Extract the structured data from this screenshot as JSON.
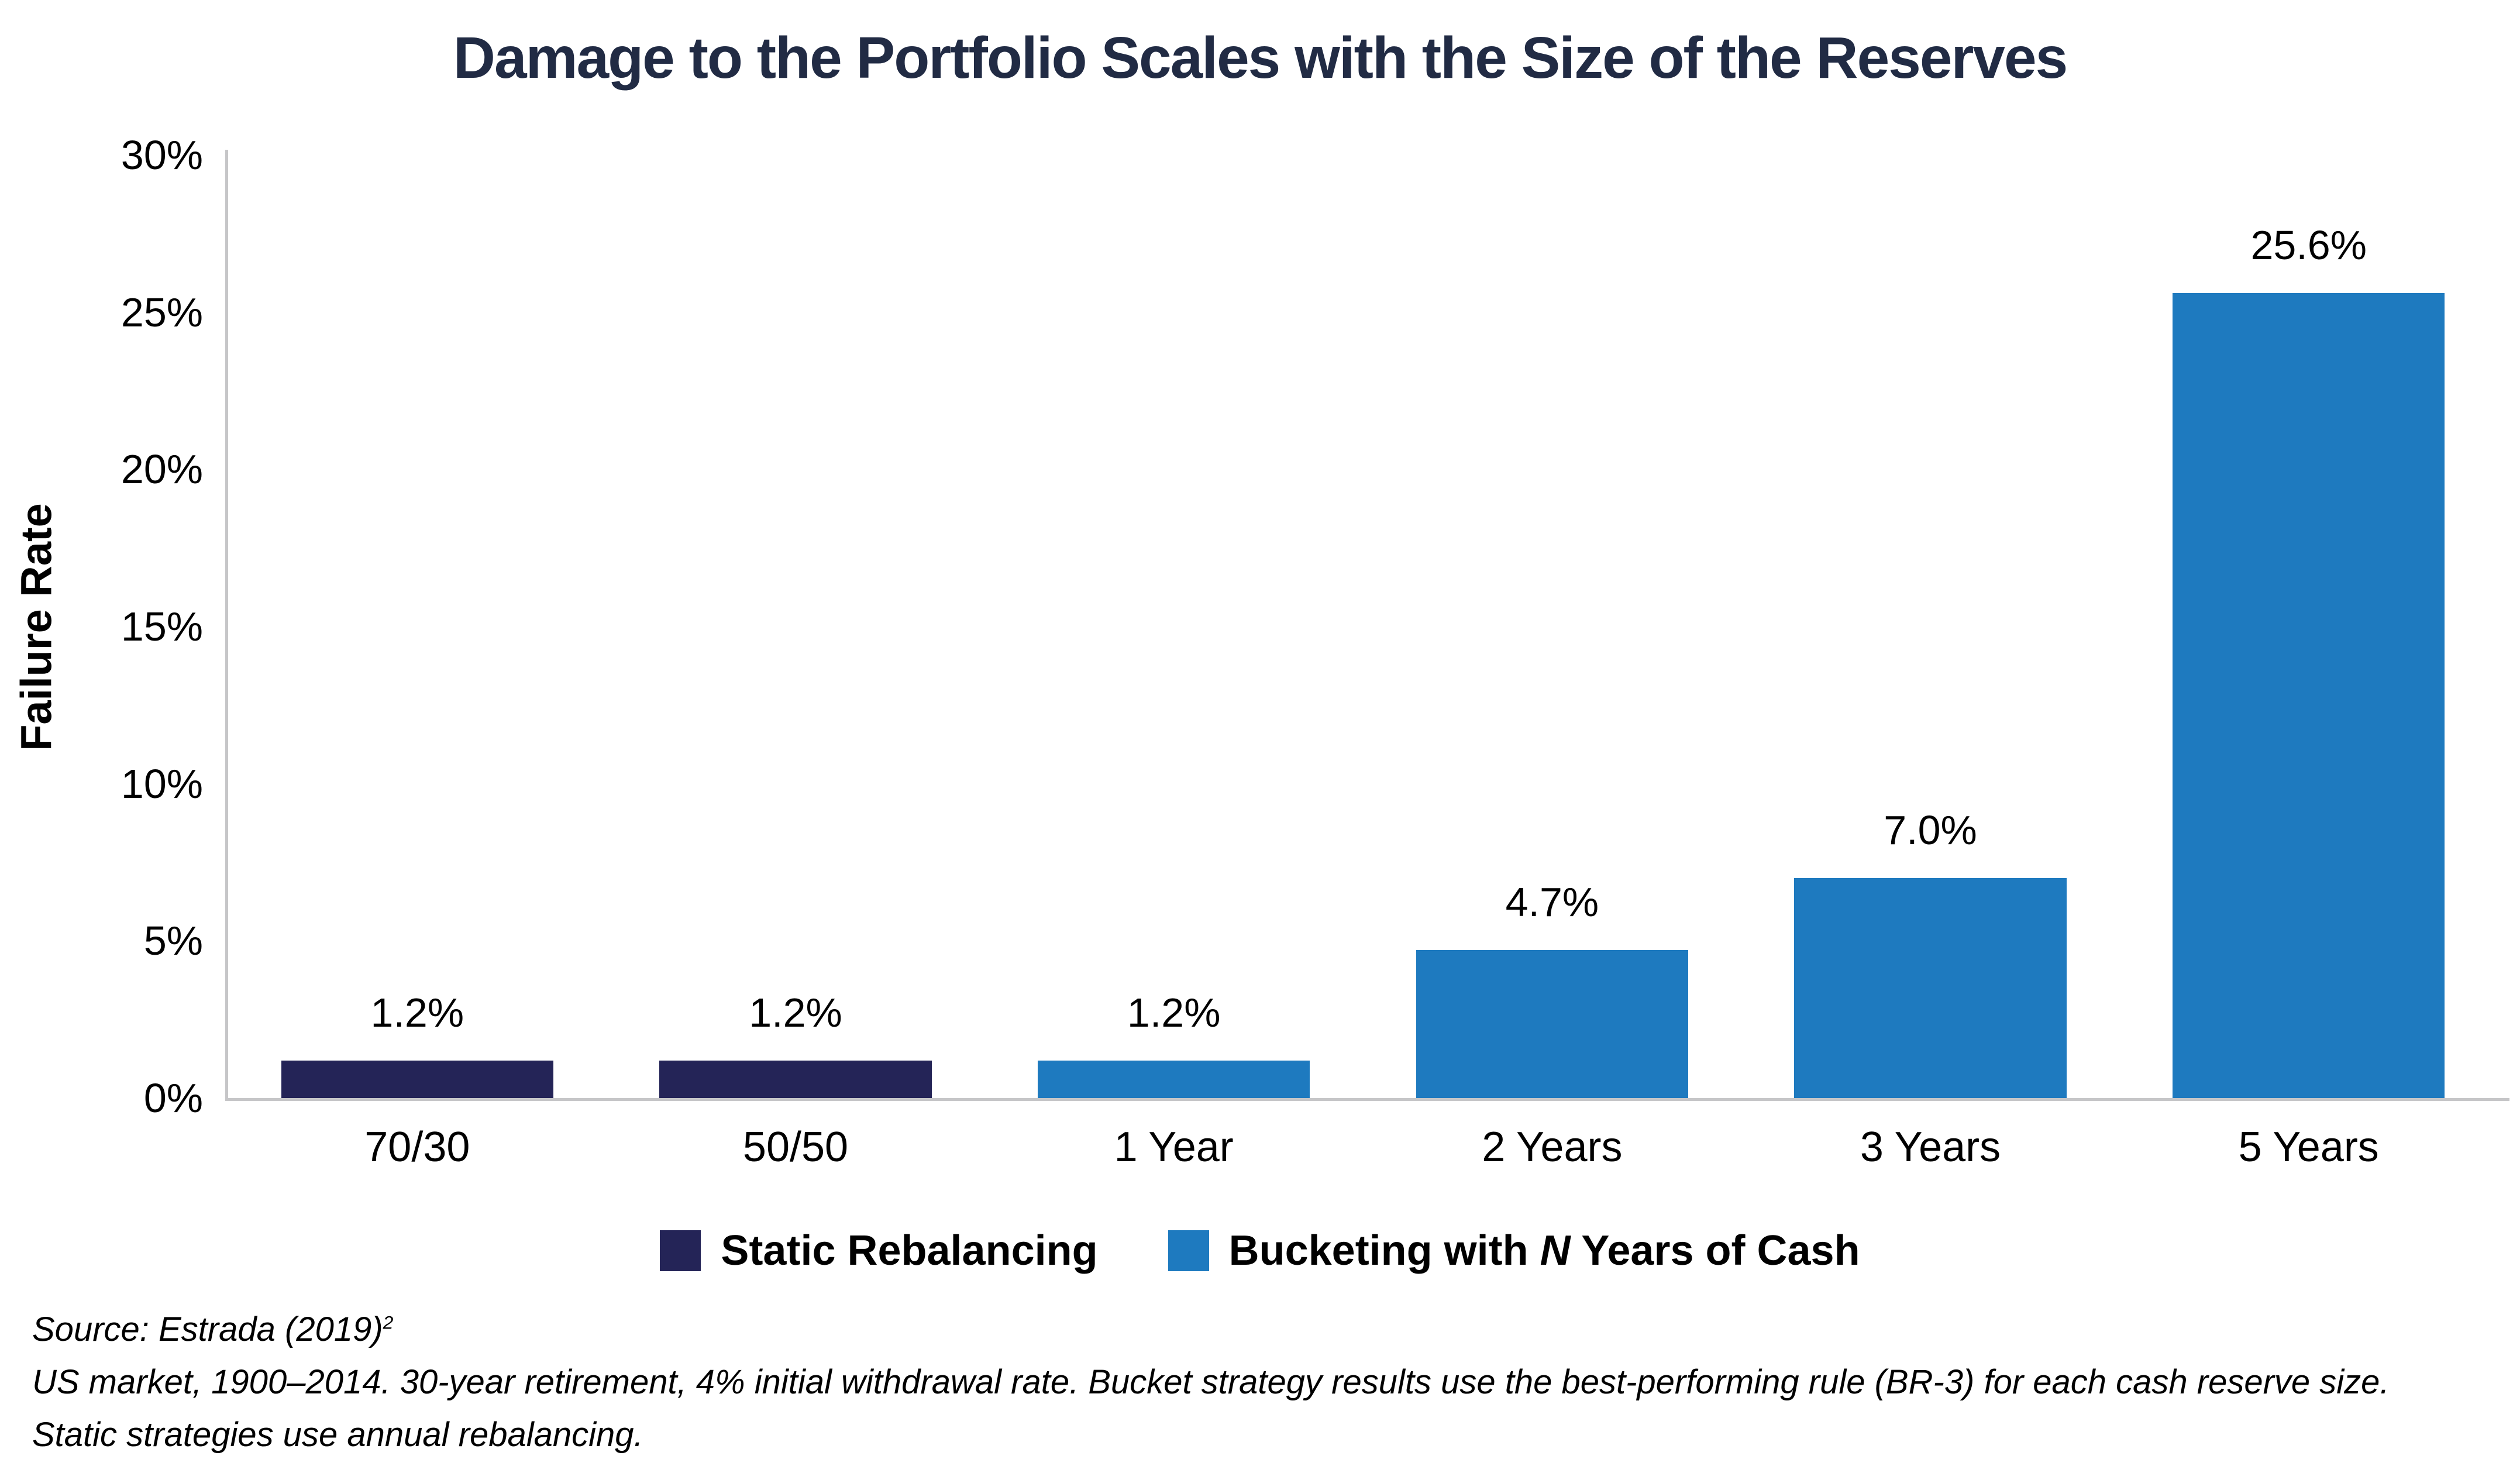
{
  "title": "Damage to the Portfolio Scales with the Size of the Reserves",
  "chart_data": {
    "type": "bar",
    "title": "Damage to the Portfolio Scales with the Size of the Reserves",
    "xlabel": "",
    "ylabel": "Failure Rate",
    "ylim": [
      0,
      30
    ],
    "grid": false,
    "legend_position": "bottom-center",
    "ytick_values": [
      0,
      5,
      10,
      15,
      20,
      25,
      30
    ],
    "ytick_labels": [
      "0%",
      "5%",
      "10%",
      "15%",
      "20%",
      "25%",
      "30%"
    ],
    "categories": [
      "70/30",
      "50/50",
      "1 Year",
      "2 Years",
      "3 Years",
      "5 Years"
    ],
    "values": [
      1.2,
      1.2,
      1.2,
      4.7,
      7.0,
      25.6
    ],
    "bar_labels": [
      "1.2%",
      "1.2%",
      "1.2%",
      "4.7%",
      "7.0%",
      "25.6%"
    ],
    "bar_series": [
      0,
      0,
      1,
      1,
      1,
      1
    ],
    "series": [
      {
        "name": "Static Rebalancing",
        "color": "#242457",
        "categories": [
          "70/30",
          "50/50"
        ],
        "values": [
          1.2,
          1.2
        ]
      },
      {
        "name": "Bucketing with N Years of Cash",
        "color": "#1E7ABF",
        "categories": [
          "1 Year",
          "2 Years",
          "3 Years",
          "5 Years"
        ],
        "values": [
          1.2,
          4.7,
          7.0,
          25.6
        ]
      }
    ]
  },
  "legend": {
    "items": [
      {
        "label": "Static Rebalancing",
        "color": "#242457"
      },
      {
        "label_parts": [
          "Bucketing with ",
          "N",
          " Years of Cash"
        ],
        "color": "#1E7ABF"
      }
    ]
  },
  "footnotes": {
    "source_prefix": "Source: Estrada (2019)",
    "source_sup": "2",
    "line2": "US market, 1900–2014. 30-year retirement, 4% initial withdrawal rate. Bucket strategy results use the best-performing rule (BR-3) for each cash reserve size.",
    "line3": "Static strategies use annual rebalancing."
  },
  "colors": {
    "title_text": "#212B44",
    "axis_line": "#C6C6C8",
    "label_text": "#000000",
    "background": "#FFFFFF"
  }
}
